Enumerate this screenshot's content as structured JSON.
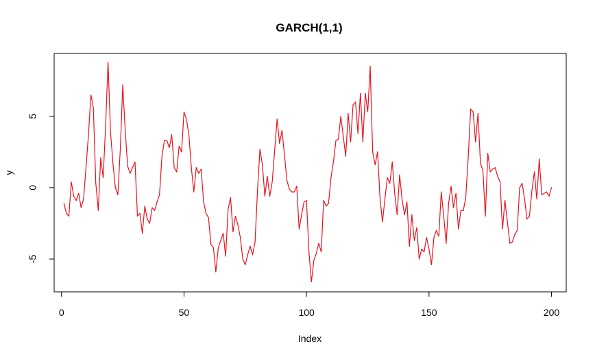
{
  "chart_data": {
    "type": "line",
    "title": "GARCH(1,1)",
    "xlabel": "Index",
    "ylabel": "y",
    "xlim": [
      -3,
      206
    ],
    "ylim": [
      -7.3,
      9.4
    ],
    "x_ticks": [
      0,
      50,
      100,
      150,
      200
    ],
    "x_tick_labels": [
      "0",
      "50",
      "100",
      "150",
      "200"
    ],
    "y_ticks": [
      -5,
      0,
      5
    ],
    "y_tick_labels": [
      "-5",
      "0",
      "5"
    ],
    "grid": false,
    "line_color": "#e8101c",
    "x_start": 1,
    "values": [
      -1.1,
      -1.8,
      -2.0,
      0.4,
      -0.6,
      -0.9,
      -0.4,
      -1.4,
      -0.8,
      1.4,
      3.7,
      6.5,
      5.6,
      0.3,
      -1.6,
      2.1,
      0.7,
      4.3,
      8.8,
      3.9,
      1.7,
      0.0,
      -0.5,
      2.7,
      7.2,
      4.0,
      1.5,
      1.0,
      1.4,
      1.8,
      -2.0,
      -1.8,
      -3.2,
      -1.3,
      -2.2,
      -2.5,
      -1.4,
      -1.6,
      -1.0,
      -0.5,
      2.2,
      3.3,
      3.3,
      2.8,
      3.7,
      1.4,
      1.1,
      2.9,
      2.5,
      5.3,
      4.8,
      3.7,
      1.4,
      -0.3,
      1.4,
      1.0,
      1.3,
      -1.0,
      -1.8,
      -2.1,
      -4.0,
      -4.2,
      -5.9,
      -4.2,
      -3.7,
      -3.2,
      -4.8,
      -1.5,
      -0.7,
      -3.1,
      -2.0,
      -2.6,
      -3.5,
      -5.0,
      -5.4,
      -4.7,
      -4.1,
      -4.7,
      -3.8,
      -0.2,
      2.7,
      1.6,
      -0.6,
      0.8,
      -0.6,
      0.4,
      2.6,
      4.8,
      3.1,
      4.0,
      2.3,
      0.5,
      -0.1,
      -0.3,
      -0.3,
      0.1,
      -2.9,
      -1.9,
      -1.0,
      -0.9,
      -4.5,
      -6.6,
      -5.1,
      -4.6,
      -3.9,
      -4.5,
      -0.9,
      -1.3,
      -1.1,
      0.7,
      1.8,
      3.3,
      3.4,
      5.0,
      3.6,
      2.2,
      5.2,
      3.2,
      5.8,
      6.0,
      3.8,
      6.6,
      3.2,
      6.6,
      5.3,
      8.5,
      2.5,
      1.6,
      2.5,
      -0.7,
      -2.4,
      -0.8,
      0.7,
      0.3,
      1.8,
      -0.4,
      -1.9,
      0.9,
      -0.8,
      -1.9,
      -1.0,
      -4.1,
      -1.9,
      -3.7,
      -2.8,
      -5.0,
      -4.3,
      -4.5,
      -3.5,
      -4.3,
      -5.4,
      -3.5,
      -3.0,
      -3.4,
      -0.3,
      -2.0,
      -3.9,
      -1.1,
      0.1,
      -1.4,
      -0.4,
      -2.9,
      -1.6,
      -1.6,
      -0.7,
      2.1,
      5.5,
      5.3,
      3.2,
      5.2,
      1.7,
      1.2,
      -2.0,
      2.4,
      1.1,
      1.3,
      1.4,
      0.8,
      0.4,
      -2.9,
      -0.9,
      -2.4,
      -3.9,
      -3.8,
      -3.3,
      -3.0,
      0.0,
      0.3,
      -0.8,
      -2.2,
      -2.0,
      -0.2,
      1.1,
      -0.8,
      2.0,
      -0.5,
      -0.4,
      -0.3,
      -0.6,
      0.0
    ]
  }
}
